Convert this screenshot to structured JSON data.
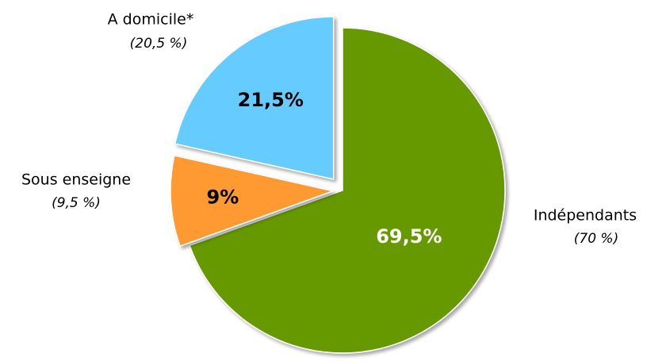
{
  "chart_data": {
    "type": "pie",
    "categories": [
      "Indépendants",
      "Sous enseigne",
      "A domicile*"
    ],
    "values": [
      69.5,
      9,
      21.5
    ],
    "value_labels": [
      "69,5%",
      "9%",
      "21,5%"
    ],
    "secondary_labels": [
      "(70 %)",
      "(9,5 %)",
      "(20,5 %)"
    ],
    "colors": [
      "#669900",
      "#ff9933",
      "#66ccff"
    ]
  }
}
